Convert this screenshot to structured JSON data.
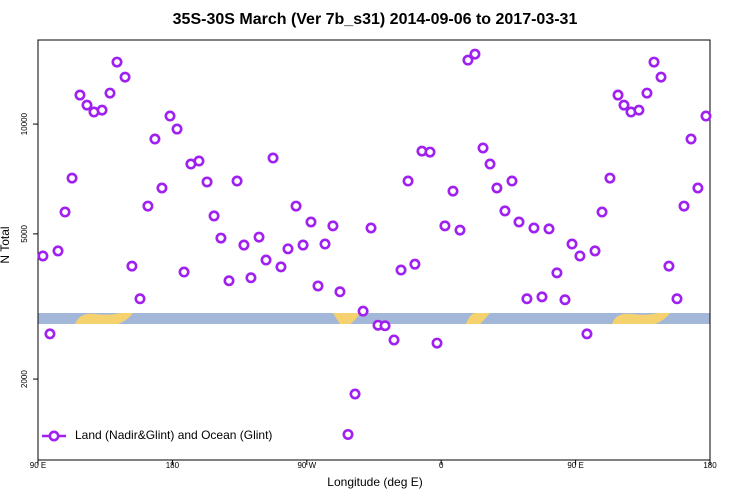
{
  "chart_data": {
    "type": "scatter",
    "title": "35S-30S March (Ver 7b_s31)   2014-09-06 to 2017-03-31",
    "x_label": "Longitude (deg E)",
    "y_label": "N Total",
    "log_y": true,
    "legend": "bottom-left",
    "xlim": [
      90,
      540
    ],
    "xticks": [
      {
        "value": 90,
        "label": "90 E"
      },
      180,
      {
        "value": 270,
        "label": "90 W"
      },
      {
        "value": 360,
        "label": "0"
      },
      {
        "value": 450,
        "label": "90 E"
      },
      {
        "value": 540,
        "label": "180"
      }
    ],
    "ylim": [
      1200,
      17000
    ],
    "yticks": [
      2000,
      5000,
      10000
    ],
    "series": [
      {
        "name": "Land (Nadir&Glint) and Ocean (Glint)",
        "color": "#a020f0",
        "x": [
          93.3,
          98.0,
          103.4,
          108.1,
          112.8,
          118.1,
          122.8,
          127.5,
          132.9,
          138.2,
          142.9,
          148.3,
          152.9,
          158.3,
          163.6,
          168.3,
          173.0,
          178.4,
          183.1,
          187.8,
          192.4,
          197.8,
          203.2,
          207.9,
          212.5,
          217.9,
          223.3,
          227.9,
          232.6,
          238.0,
          242.7,
          247.4,
          252.7,
          257.4,
          262.8,
          267.5,
          272.8,
          277.5,
          282.2,
          287.5,
          292.2,
          297.6,
          302.3,
          307.7,
          313.0,
          317.7,
          322.4,
          328.4,
          333.1,
          337.8,
          342.4,
          347.1,
          352.5,
          357.2,
          362.5,
          367.9,
          372.6,
          377.9,
          382.6,
          388.0,
          392.7,
          397.3,
          402.7,
          407.4,
          412.1,
          417.4,
          422.1,
          427.5,
          432.2,
          437.5,
          442.9,
          447.6,
          452.9,
          457.6,
          463.0,
          467.7,
          473.0,
          478.4,
          482.4,
          487.1,
          492.4,
          497.8,
          502.5,
          507.2,
          512.5,
          517.9,
          522.6,
          527.3,
          531.9,
          537.3
        ],
        "values": [
          4350,
          2660,
          4490,
          5740,
          7110,
          12010,
          11270,
          10790,
          10920,
          12160,
          14790,
          13450,
          4080,
          3320,
          5960,
          9100,
          6680,
          10520,
          9690,
          3930,
          7770,
          7920,
          6940,
          5600,
          4870,
          3720,
          6980,
          4660,
          3790,
          4900,
          4240,
          8070,
          4060,
          4550,
          5960,
          4660,
          5390,
          3600,
          4690,
          5260,
          3470,
          1410,
          1820,
          3070,
          5190,
          2810,
          2800,
          2560,
          3980,
          6980,
          4130,
          8430,
          8380,
          2510,
          5260,
          6550,
          5120,
          14970,
          15550,
          8600,
          7770,
          6680,
          5780,
          6980,
          5390,
          3320,
          5190,
          3360,
          5160,
          3910,
          3300,
          4690,
          4350,
          2660,
          4490,
          5740,
          7110,
          12010,
          11270,
          10790,
          10920,
          12160,
          14790,
          13450,
          4080,
          3320,
          5960,
          9100,
          6680,
          10520
        ]
      }
    ]
  }
}
